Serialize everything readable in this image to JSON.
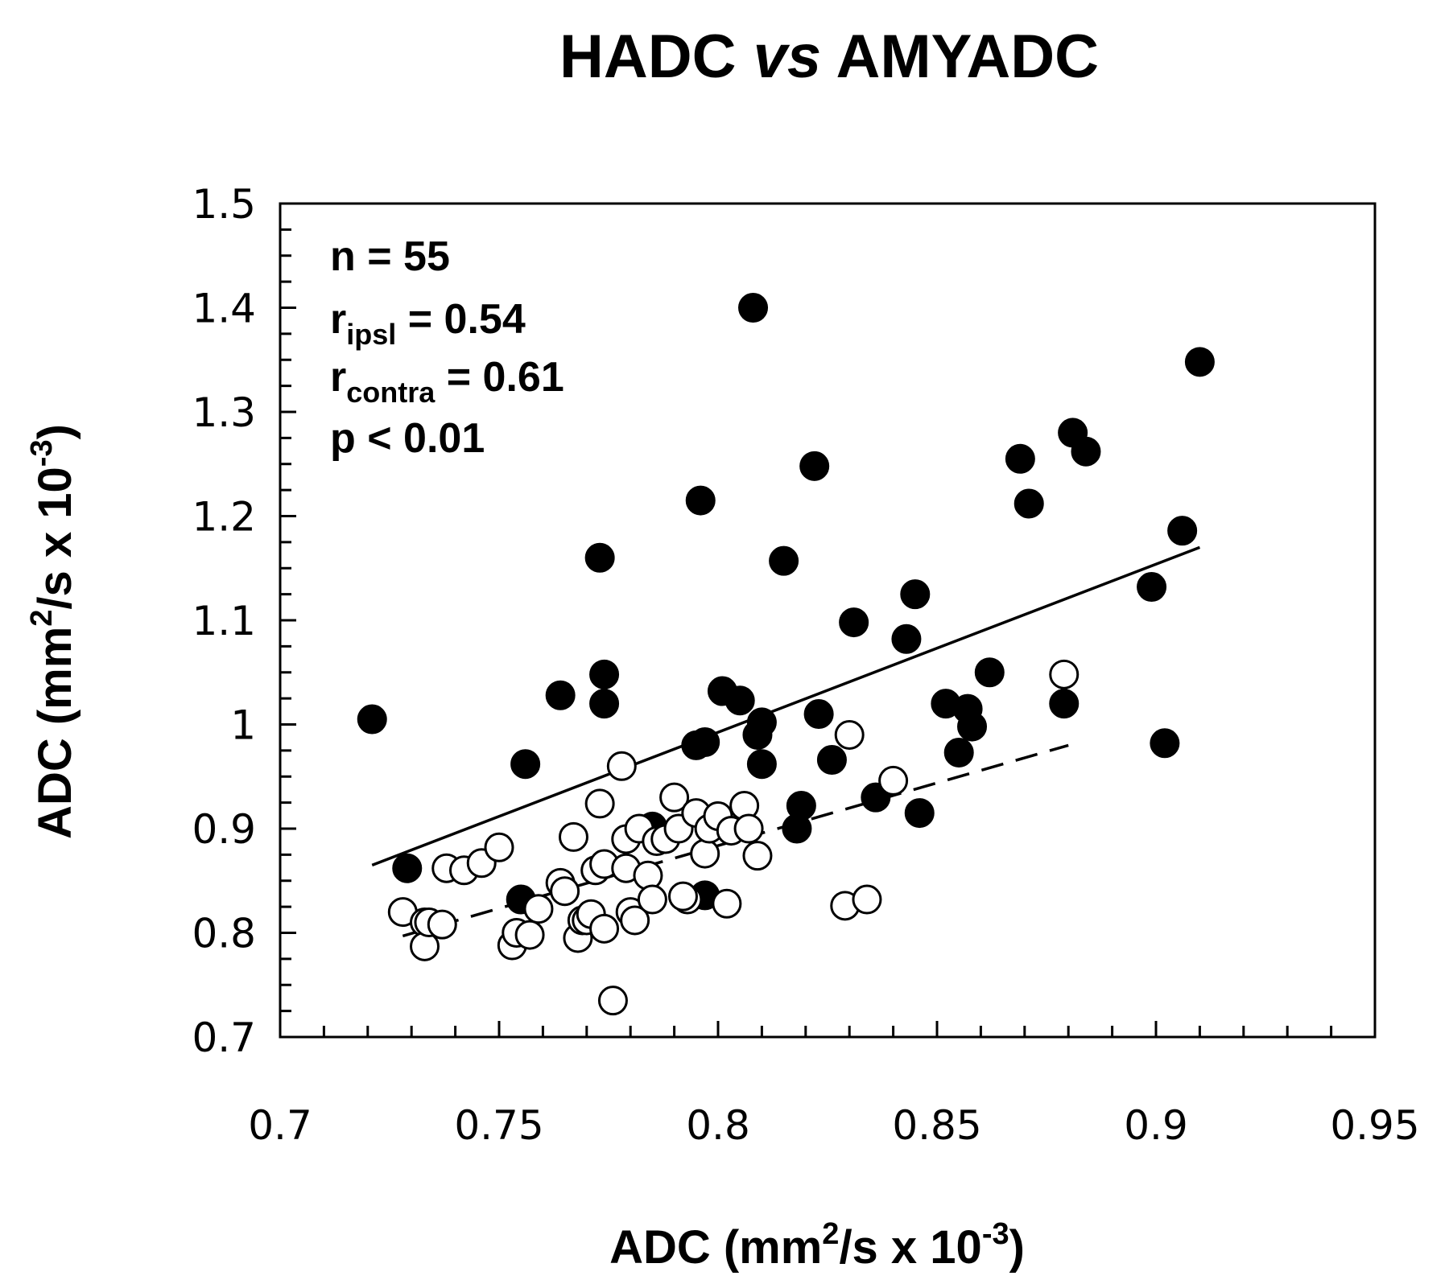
{
  "chart_data": {
    "type": "scatter",
    "title": {
      "part1": "HADC ",
      "part2": "vs",
      "part3": " AMYADC"
    },
    "xlabel": {
      "main": "ADC (mm",
      "sup1": "2",
      "mid": "/s x 10",
      "sup2": "-3",
      "end": ")"
    },
    "ylabel": {
      "main": "ADC (mm",
      "sup1": "2",
      "mid": "/s x 10",
      "sup2": "-3",
      "end": ")"
    },
    "xlim": [
      0.7,
      0.95
    ],
    "ylim": [
      0.7,
      1.5
    ],
    "x_ticks": [
      "0.7",
      "0.75",
      "0.8",
      "0.85",
      "0.9",
      "0.95"
    ],
    "y_ticks": [
      "0.7",
      "0.8",
      "0.9",
      "1",
      "1.1",
      "1.2",
      "1.3",
      "1.4",
      "1.5"
    ],
    "x_minor_step": 0.01,
    "y_minor_step": 0.025,
    "grid": false,
    "annotations": {
      "n": "n = 55",
      "r_ipsl": {
        "base": "r",
        "sub": "ipsl",
        "rest": " = 0.54"
      },
      "r_contra": {
        "base": "r",
        "sub": "contra",
        "rest": " = 0.61"
      },
      "p": "p < 0.01"
    },
    "series": [
      {
        "fill": "filled",
        "color": "#000000",
        "x": [
          0.721,
          0.729,
          0.755,
          0.756,
          0.764,
          0.773,
          0.774,
          0.774,
          0.795,
          0.796,
          0.797,
          0.801,
          0.805,
          0.808,
          0.809,
          0.81,
          0.81,
          0.815,
          0.818,
          0.822,
          0.823,
          0.826,
          0.831,
          0.836,
          0.843,
          0.845,
          0.846,
          0.852,
          0.855,
          0.857,
          0.858,
          0.862,
          0.869,
          0.871,
          0.879,
          0.881,
          0.884,
          0.899,
          0.902,
          0.906,
          0.91,
          0.797,
          0.785,
          0.819
        ],
        "y": [
          1.005,
          0.862,
          0.832,
          0.962,
          1.028,
          1.16,
          1.048,
          1.02,
          0.98,
          1.215,
          0.983,
          1.032,
          1.023,
          1.4,
          0.99,
          0.962,
          1.002,
          1.157,
          0.9,
          1.248,
          1.01,
          0.966,
          1.098,
          0.93,
          1.082,
          1.125,
          0.915,
          1.02,
          0.973,
          1.015,
          0.998,
          1.05,
          1.255,
          1.212,
          1.02,
          1.28,
          1.262,
          1.132,
          0.982,
          1.186,
          1.348,
          0.836,
          0.902,
          0.922
        ]
      },
      {
        "fill": "open",
        "color": "#000000",
        "x": [
          0.728,
          0.733,
          0.733,
          0.734,
          0.737,
          0.738,
          0.742,
          0.746,
          0.75,
          0.753,
          0.754,
          0.757,
          0.759,
          0.764,
          0.765,
          0.767,
          0.768,
          0.769,
          0.77,
          0.771,
          0.772,
          0.773,
          0.774,
          0.774,
          0.776,
          0.778,
          0.779,
          0.779,
          0.78,
          0.781,
          0.782,
          0.784,
          0.785,
          0.786,
          0.788,
          0.79,
          0.791,
          0.793,
          0.795,
          0.797,
          0.798,
          0.8,
          0.802,
          0.803,
          0.806,
          0.807,
          0.809,
          0.829,
          0.83,
          0.834,
          0.84,
          0.879,
          0.792
        ],
        "y": [
          0.82,
          0.81,
          0.787,
          0.81,
          0.808,
          0.862,
          0.86,
          0.867,
          0.882,
          0.788,
          0.8,
          0.798,
          0.823,
          0.848,
          0.84,
          0.892,
          0.795,
          0.812,
          0.812,
          0.818,
          0.86,
          0.924,
          0.866,
          0.804,
          0.735,
          0.96,
          0.89,
          0.862,
          0.82,
          0.812,
          0.9,
          0.855,
          0.832,
          0.888,
          0.89,
          0.93,
          0.9,
          0.832,
          0.915,
          0.876,
          0.9,
          0.912,
          0.828,
          0.898,
          0.922,
          0.9,
          0.874,
          0.826,
          0.99,
          0.832,
          0.946,
          1.048,
          0.835
        ]
      }
    ],
    "fit_lines": [
      {
        "style": "solid",
        "x": [
          0.721,
          0.91
        ],
        "y": [
          0.865,
          1.17
        ]
      },
      {
        "style": "dashed",
        "x": [
          0.728,
          0.88
        ],
        "y": [
          0.797,
          0.98
        ]
      }
    ]
  }
}
